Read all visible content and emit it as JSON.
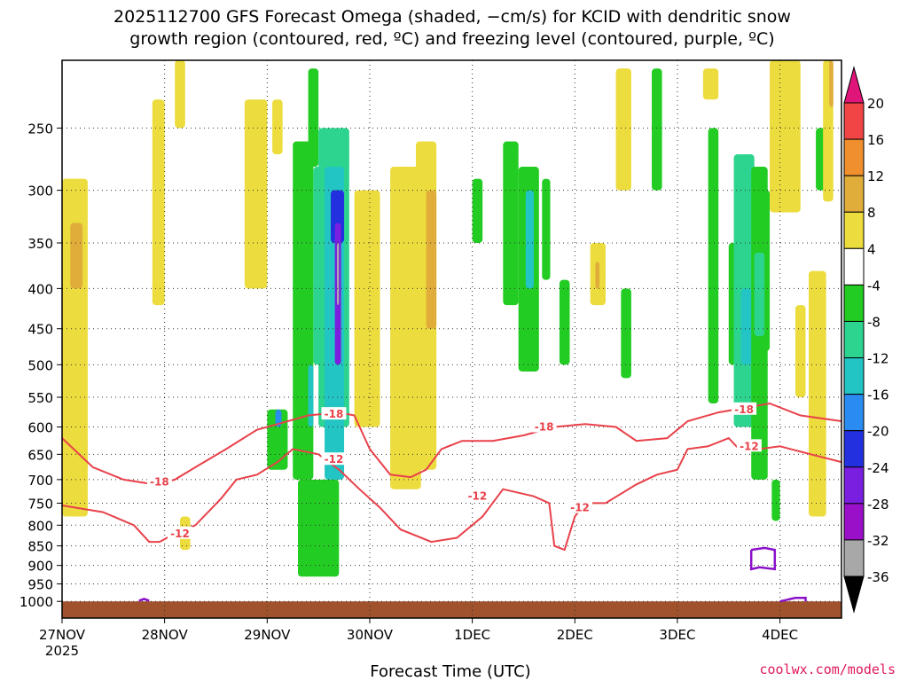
{
  "chart_data": {
    "type": "heatmap",
    "title_line1": "2025112700 GFS Forecast Omega (shaded, −cm/s) for KCID with dendritic snow",
    "title_line2": "growth region (contoured, red, ºC) and freezing level (contoured, purple, ºC)",
    "xlabel": "Forecast Time (UTC)",
    "x_tick_labels": [
      "27NOV",
      "28NOV",
      "29NOV",
      "30NOV",
      "1DEC",
      "2DEC",
      "3DEC",
      "4DEC"
    ],
    "x_tick_sublabel": "2025",
    "x_range_days": [
      0,
      7.6
    ],
    "y_scale": "log pressure (hPa)",
    "y_range_hpa": [
      1050,
      205
    ],
    "y_tick_labels": [
      250,
      300,
      350,
      400,
      450,
      500,
      550,
      600,
      650,
      700,
      750,
      800,
      850,
      900,
      950,
      1000
    ],
    "grid": "dotted",
    "colorbar": {
      "tick_labels": [
        20,
        16,
        12,
        8,
        4,
        -4,
        -8,
        -12,
        -16,
        -20,
        -24,
        -28,
        -32,
        -36
      ],
      "bands": [
        {
          "from": 16,
          "to": 20,
          "color": "#f04545"
        },
        {
          "from": 12,
          "to": 16,
          "color": "#ef8f2e"
        },
        {
          "from": 8,
          "to": 12,
          "color": "#e0ad3a"
        },
        {
          "from": 4,
          "to": 8,
          "color": "#ecdc3d"
        },
        {
          "from": -4,
          "to": 4,
          "color": "#ffffff"
        },
        {
          "from": -8,
          "to": -4,
          "color": "#22cc22"
        },
        {
          "from": -12,
          "to": -8,
          "color": "#2cd48f"
        },
        {
          "from": -16,
          "to": -12,
          "color": "#22c4c4"
        },
        {
          "from": -20,
          "to": -16,
          "color": "#2a8cf0"
        },
        {
          "from": -24,
          "to": -20,
          "color": "#2230e0"
        },
        {
          "from": -28,
          "to": -24,
          "color": "#7a1ee0"
        },
        {
          "from": -32,
          "to": -28,
          "color": "#9a10c8"
        },
        {
          "from": -36,
          "to": -32,
          "color": "#a8a8a8"
        }
      ],
      "top_arrow_color": "#e0157a",
      "bottom_arrow_color": "#000000"
    },
    "omega_cells": [
      {
        "t": [
          0.0,
          0.25
        ],
        "p": [
          290,
          780
        ],
        "v": 5
      },
      {
        "t": [
          0.08,
          0.2
        ],
        "p": [
          330,
          400
        ],
        "v": 9
      },
      {
        "t": [
          0.15,
          0.25
        ],
        "p": [
          620,
          680
        ],
        "v": 5
      },
      {
        "t": [
          0.88,
          1.0
        ],
        "p": [
          230,
          420
        ],
        "v": 5
      },
      {
        "t": [
          1.1,
          1.2
        ],
        "p": [
          205,
          250
        ],
        "v": 5
      },
      {
        "t": [
          1.15,
          1.25
        ],
        "p": [
          780,
          860
        ],
        "v": 5
      },
      {
        "t": [
          1.78,
          2.0
        ],
        "p": [
          230,
          400
        ],
        "v": 5
      },
      {
        "t": [
          2.05,
          2.15
        ],
        "p": [
          230,
          270
        ],
        "v": 5
      },
      {
        "t": [
          2.0,
          2.2
        ],
        "p": [
          570,
          680
        ],
        "v": -6
      },
      {
        "t": [
          2.08,
          2.14
        ],
        "p": [
          570,
          600
        ],
        "v": -18
      },
      {
        "t": [
          2.25,
          2.45
        ],
        "p": [
          260,
          700
        ],
        "v": -6
      },
      {
        "t": [
          2.4,
          2.5
        ],
        "p": [
          210,
          280
        ],
        "v": -6
      },
      {
        "t": [
          2.45,
          2.55
        ],
        "p": [
          280,
          500
        ],
        "v": -10
      },
      {
        "t": [
          2.4,
          2.45
        ],
        "p": [
          500,
          600
        ],
        "v": -14
      },
      {
        "t": [
          2.3,
          2.7
        ],
        "p": [
          700,
          930
        ],
        "v": -6
      },
      {
        "t": [
          2.5,
          2.8
        ],
        "p": [
          250,
          600
        ],
        "v": -10
      },
      {
        "t": [
          2.56,
          2.75
        ],
        "p": [
          280,
          700
        ],
        "v": -14
      },
      {
        "t": [
          2.62,
          2.75
        ],
        "p": [
          300,
          350
        ],
        "v": -22
      },
      {
        "t": [
          2.66,
          2.72
        ],
        "p": [
          330,
          500
        ],
        "v": -26
      },
      {
        "t": [
          2.68,
          2.7
        ],
        "p": [
          350,
          420
        ],
        "v": -36
      },
      {
        "t": [
          2.85,
          3.1
        ],
        "p": [
          300,
          600
        ],
        "v": 5
      },
      {
        "t": [
          3.2,
          3.5
        ],
        "p": [
          280,
          720
        ],
        "v": 5
      },
      {
        "t": [
          3.45,
          3.65
        ],
        "p": [
          260,
          680
        ],
        "v": 5
      },
      {
        "t": [
          3.55,
          3.65
        ],
        "p": [
          300,
          450
        ],
        "v": 9
      },
      {
        "t": [
          4.0,
          4.1
        ],
        "p": [
          290,
          350
        ],
        "v": -6
      },
      {
        "t": [
          4.3,
          4.45
        ],
        "p": [
          260,
          420
        ],
        "v": -6
      },
      {
        "t": [
          4.45,
          4.65
        ],
        "p": [
          280,
          510
        ],
        "v": -6
      },
      {
        "t": [
          4.52,
          4.6
        ],
        "p": [
          300,
          400
        ],
        "v": -14
      },
      {
        "t": [
          4.68,
          4.76
        ],
        "p": [
          290,
          390
        ],
        "v": -6
      },
      {
        "t": [
          4.85,
          4.95
        ],
        "p": [
          390,
          500
        ],
        "v": -6
      },
      {
        "t": [
          5.15,
          5.3
        ],
        "p": [
          350,
          420
        ],
        "v": 5
      },
      {
        "t": [
          5.2,
          5.24
        ],
        "p": [
          370,
          400
        ],
        "v": 9
      },
      {
        "t": [
          5.4,
          5.55
        ],
        "p": [
          210,
          300
        ],
        "v": 5
      },
      {
        "t": [
          5.45,
          5.55
        ],
        "p": [
          400,
          520
        ],
        "v": -6
      },
      {
        "t": [
          5.75,
          5.85
        ],
        "p": [
          210,
          300
        ],
        "v": -6
      },
      {
        "t": [
          6.25,
          6.4
        ],
        "p": [
          210,
          230
        ],
        "v": 5
      },
      {
        "t": [
          6.3,
          6.4
        ],
        "p": [
          250,
          560
        ],
        "v": -6
      },
      {
        "t": [
          6.5,
          6.6
        ],
        "p": [
          350,
          500
        ],
        "v": -6
      },
      {
        "t": [
          6.55,
          6.75
        ],
        "p": [
          270,
          600
        ],
        "v": -10
      },
      {
        "t": [
          6.62,
          6.72
        ],
        "p": [
          400,
          500
        ],
        "v": -14
      },
      {
        "t": [
          6.72,
          6.88
        ],
        "p": [
          280,
          700
        ],
        "v": -6
      },
      {
        "t": [
          6.75,
          6.85
        ],
        "p": [
          360,
          460
        ],
        "v": -10
      },
      {
        "t": [
          6.85,
          6.9
        ],
        "p": [
          300,
          480
        ],
        "v": -6
      },
      {
        "t": [
          6.9,
          7.2
        ],
        "p": [
          205,
          320
        ],
        "v": 5
      },
      {
        "t": [
          6.92,
          7.0
        ],
        "p": [
          700,
          790
        ],
        "v": -6
      },
      {
        "t": [
          7.15,
          7.25
        ],
        "p": [
          420,
          550
        ],
        "v": 5
      },
      {
        "t": [
          7.28,
          7.45
        ],
        "p": [
          380,
          780
        ],
        "v": 5
      },
      {
        "t": [
          7.35,
          7.5
        ],
        "p": [
          250,
          300
        ],
        "v": -6
      },
      {
        "t": [
          7.42,
          7.52
        ],
        "p": [
          205,
          310
        ],
        "v": 5
      },
      {
        "t": [
          7.48,
          7.52
        ],
        "p": [
          205,
          235
        ],
        "v": 9
      }
    ],
    "contours_red": [
      {
        "label": "-18",
        "points": [
          [
            0.0,
            620
          ],
          [
            0.3,
            675
          ],
          [
            0.6,
            700
          ],
          [
            0.9,
            710
          ],
          [
            1.1,
            700
          ],
          [
            1.3,
            675
          ],
          [
            1.6,
            640
          ],
          [
            1.9,
            605
          ],
          [
            2.1,
            595
          ],
          [
            2.4,
            580
          ],
          [
            2.7,
            575
          ],
          [
            2.85,
            580
          ],
          [
            3.0,
            640
          ],
          [
            3.2,
            690
          ],
          [
            3.4,
            695
          ],
          [
            3.55,
            680
          ],
          [
            3.7,
            640
          ],
          [
            3.9,
            625
          ],
          [
            4.2,
            625
          ],
          [
            4.5,
            615
          ],
          [
            4.8,
            600
          ],
          [
            5.1,
            595
          ],
          [
            5.4,
            600
          ],
          [
            5.6,
            625
          ],
          [
            5.9,
            620
          ],
          [
            6.1,
            590
          ],
          [
            6.4,
            575
          ],
          [
            6.9,
            560
          ],
          [
            7.2,
            580
          ],
          [
            7.6,
            590
          ]
        ]
      },
      {
        "label": "-12",
        "points": [
          [
            0.0,
            755
          ],
          [
            0.4,
            770
          ],
          [
            0.7,
            800
          ],
          [
            0.85,
            840
          ],
          [
            0.95,
            840
          ],
          [
            1.1,
            820
          ],
          [
            1.3,
            800
          ],
          [
            1.55,
            740
          ],
          [
            1.7,
            700
          ],
          [
            1.9,
            690
          ],
          [
            2.1,
            665
          ],
          [
            2.25,
            640
          ],
          [
            2.5,
            650
          ],
          [
            2.7,
            680
          ],
          [
            2.9,
            720
          ],
          [
            3.1,
            760
          ],
          [
            3.3,
            810
          ],
          [
            3.6,
            840
          ],
          [
            3.85,
            830
          ],
          [
            4.1,
            780
          ],
          [
            4.3,
            720
          ],
          [
            4.6,
            735
          ],
          [
            4.75,
            750
          ],
          [
            4.8,
            850
          ],
          [
            4.9,
            860
          ],
          [
            5.0,
            780
          ],
          [
            5.1,
            750
          ],
          [
            5.3,
            750
          ],
          [
            5.6,
            710
          ],
          [
            5.8,
            690
          ],
          [
            6.0,
            680
          ],
          [
            6.1,
            640
          ],
          [
            6.3,
            635
          ],
          [
            6.5,
            620
          ],
          [
            6.6,
            640
          ],
          [
            6.8,
            640
          ],
          [
            7.0,
            635
          ],
          [
            7.3,
            650
          ],
          [
            7.6,
            665
          ]
        ]
      }
    ],
    "contour_labels": [
      {
        "text": "-18",
        "t": 0.95,
        "p": 705
      },
      {
        "text": "-18",
        "t": 2.65,
        "p": 578
      },
      {
        "text": "-18",
        "t": 4.7,
        "p": 600
      },
      {
        "text": "-18",
        "t": 6.65,
        "p": 570
      },
      {
        "text": "-12",
        "t": 1.15,
        "p": 820
      },
      {
        "text": "-12",
        "t": 2.65,
        "p": 660
      },
      {
        "text": "-12",
        "t": 4.05,
        "p": 735
      },
      {
        "text": "-12",
        "t": 5.05,
        "p": 760
      },
      {
        "text": "-12",
        "t": 6.7,
        "p": 635
      }
    ],
    "contours_purple": [
      {
        "points": [
          [
            6.72,
            860
          ],
          [
            6.72,
            910
          ],
          [
            6.8,
            905
          ],
          [
            6.95,
            910
          ],
          [
            6.95,
            860
          ],
          [
            6.85,
            855
          ],
          [
            6.72,
            860
          ]
        ]
      },
      {
        "points": [
          [
            7.0,
            1000
          ],
          [
            7.15,
            990
          ],
          [
            7.25,
            990
          ],
          [
            7.25,
            1000
          ]
        ]
      },
      {
        "points": [
          [
            0.75,
            998
          ],
          [
            0.8,
            993
          ],
          [
            0.85,
            998
          ]
        ]
      }
    ],
    "ground_level_hpa": 1000
  },
  "credit": "coolwx.com/models"
}
